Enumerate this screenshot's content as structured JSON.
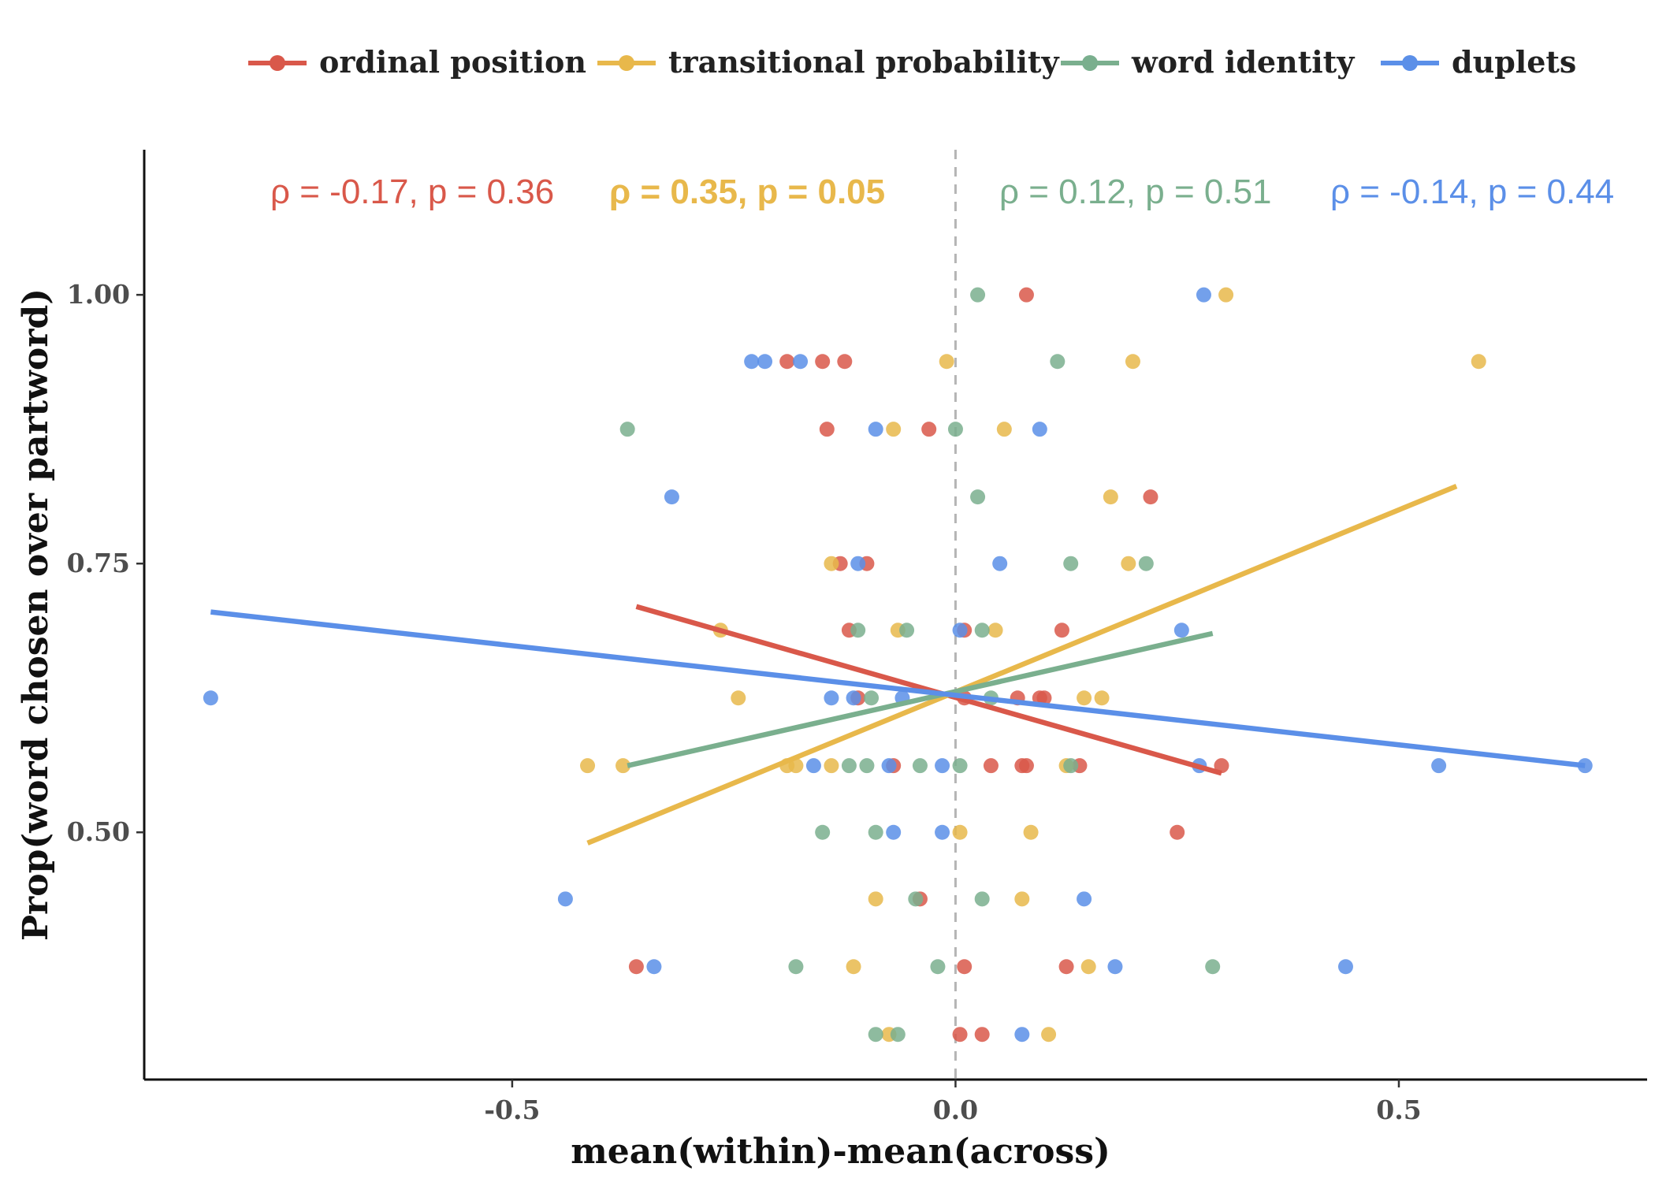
{
  "chart_data": {
    "type": "scatter",
    "xlabel": "mean(within)-mean(across)",
    "ylabel": "Prop(word chosen over partword)",
    "xlim": [
      -0.915,
      0.78
    ],
    "ylim": [
      0.27,
      1.135
    ],
    "xticks": [
      -0.5,
      0.0,
      0.5
    ],
    "xtick_labels": [
      "-0.5",
      "0.0",
      "0.5"
    ],
    "yticks": [
      0.5,
      0.75,
      1.0
    ],
    "ytick_labels": [
      "0.50",
      "0.75",
      "1.00"
    ],
    "reference_line": {
      "x": 0.0,
      "style": "dashed"
    },
    "legend_position": "top",
    "grid": false,
    "series": [
      {
        "name": "ordinal position",
        "color": "#d9584a",
        "annotation": "ρ = -0.17, p = 0.36",
        "annotation_bold": false,
        "fit": [
          [
            -0.36,
            0.71
          ],
          [
            0.3,
            0.555
          ]
        ],
        "points": [
          [
            0.08,
            1.0
          ],
          [
            -0.19,
            0.938
          ],
          [
            -0.15,
            0.938
          ],
          [
            -0.125,
            0.938
          ],
          [
            -0.145,
            0.875
          ],
          [
            -0.03,
            0.875
          ],
          [
            0.22,
            0.812
          ],
          [
            -0.13,
            0.75
          ],
          [
            -0.1,
            0.75
          ],
          [
            -0.12,
            0.688
          ],
          [
            0.01,
            0.688
          ],
          [
            0.12,
            0.688
          ],
          [
            -0.11,
            0.625
          ],
          [
            0.07,
            0.625
          ],
          [
            0.095,
            0.625
          ],
          [
            0.1,
            0.625
          ],
          [
            0.01,
            0.625
          ],
          [
            -0.07,
            0.562
          ],
          [
            0.04,
            0.562
          ],
          [
            0.08,
            0.562
          ],
          [
            0.075,
            0.562
          ],
          [
            0.14,
            0.562
          ],
          [
            0.3,
            0.562
          ],
          [
            0.25,
            0.5
          ],
          [
            -0.04,
            0.438
          ],
          [
            -0.36,
            0.375
          ],
          [
            0.01,
            0.375
          ],
          [
            0.125,
            0.375
          ],
          [
            0.005,
            0.312
          ],
          [
            0.03,
            0.312
          ]
        ]
      },
      {
        "name": "transitional probability",
        "color": "#e8b84b",
        "annotation": "ρ = 0.35, p = 0.05",
        "annotation_bold": true,
        "fit": [
          [
            -0.415,
            0.49
          ],
          [
            0.565,
            0.822
          ]
        ],
        "points": [
          [
            0.305,
            1.0
          ],
          [
            -0.01,
            0.938
          ],
          [
            0.2,
            0.938
          ],
          [
            0.59,
            0.938
          ],
          [
            -0.07,
            0.875
          ],
          [
            0.055,
            0.875
          ],
          [
            0.175,
            0.812
          ],
          [
            -0.14,
            0.75
          ],
          [
            0.195,
            0.75
          ],
          [
            -0.265,
            0.688
          ],
          [
            -0.065,
            0.688
          ],
          [
            0.045,
            0.688
          ],
          [
            -0.245,
            0.625
          ],
          [
            0.145,
            0.625
          ],
          [
            0.165,
            0.625
          ],
          [
            -0.415,
            0.562
          ],
          [
            -0.375,
            0.562
          ],
          [
            -0.19,
            0.562
          ],
          [
            -0.18,
            0.562
          ],
          [
            -0.14,
            0.562
          ],
          [
            0.125,
            0.562
          ],
          [
            0.005,
            0.5
          ],
          [
            0.085,
            0.5
          ],
          [
            -0.09,
            0.438
          ],
          [
            0.075,
            0.438
          ],
          [
            -0.115,
            0.375
          ],
          [
            0.15,
            0.375
          ],
          [
            -0.075,
            0.312
          ],
          [
            0.105,
            0.312
          ]
        ]
      },
      {
        "name": "word identity",
        "color": "#7aaf8e",
        "annotation": "ρ = 0.12, p = 0.51",
        "annotation_bold": false,
        "fit": [
          [
            -0.37,
            0.562
          ],
          [
            0.29,
            0.685
          ]
        ],
        "points": [
          [
            0.025,
            1.0
          ],
          [
            0.115,
            0.938
          ],
          [
            -0.37,
            0.875
          ],
          [
            0.0,
            0.875
          ],
          [
            0.025,
            0.812
          ],
          [
            0.13,
            0.75
          ],
          [
            0.215,
            0.75
          ],
          [
            -0.11,
            0.688
          ],
          [
            -0.055,
            0.688
          ],
          [
            0.03,
            0.688
          ],
          [
            -0.095,
            0.625
          ],
          [
            0.04,
            0.625
          ],
          [
            -0.12,
            0.562
          ],
          [
            -0.1,
            0.562
          ],
          [
            -0.04,
            0.562
          ],
          [
            0.005,
            0.562
          ],
          [
            0.13,
            0.562
          ],
          [
            -0.15,
            0.5
          ],
          [
            -0.09,
            0.5
          ],
          [
            -0.045,
            0.438
          ],
          [
            0.03,
            0.438
          ],
          [
            -0.18,
            0.375
          ],
          [
            -0.02,
            0.375
          ],
          [
            0.29,
            0.375
          ],
          [
            -0.09,
            0.312
          ],
          [
            -0.065,
            0.312
          ]
        ]
      },
      {
        "name": "duplets",
        "color": "#5b8fe8",
        "annotation": "ρ = -0.14, p = 0.44",
        "annotation_bold": false,
        "fit": [
          [
            -0.84,
            0.705
          ],
          [
            0.71,
            0.562
          ]
        ],
        "points": [
          [
            0.28,
            1.0
          ],
          [
            -0.23,
            0.938
          ],
          [
            -0.215,
            0.938
          ],
          [
            -0.175,
            0.938
          ],
          [
            -0.09,
            0.875
          ],
          [
            0.095,
            0.875
          ],
          [
            -0.32,
            0.812
          ],
          [
            0.05,
            0.75
          ],
          [
            -0.11,
            0.75
          ],
          [
            0.005,
            0.688
          ],
          [
            0.255,
            0.688
          ],
          [
            -0.14,
            0.625
          ],
          [
            -0.115,
            0.625
          ],
          [
            -0.06,
            0.625
          ],
          [
            -0.84,
            0.625
          ],
          [
            -0.16,
            0.562
          ],
          [
            -0.075,
            0.562
          ],
          [
            -0.015,
            0.562
          ],
          [
            0.275,
            0.562
          ],
          [
            0.545,
            0.562
          ],
          [
            0.71,
            0.562
          ],
          [
            -0.07,
            0.5
          ],
          [
            -0.015,
            0.5
          ],
          [
            -0.44,
            0.438
          ],
          [
            0.145,
            0.438
          ],
          [
            -0.34,
            0.375
          ],
          [
            0.18,
            0.375
          ],
          [
            0.44,
            0.375
          ],
          [
            0.075,
            0.312
          ]
        ]
      }
    ]
  }
}
